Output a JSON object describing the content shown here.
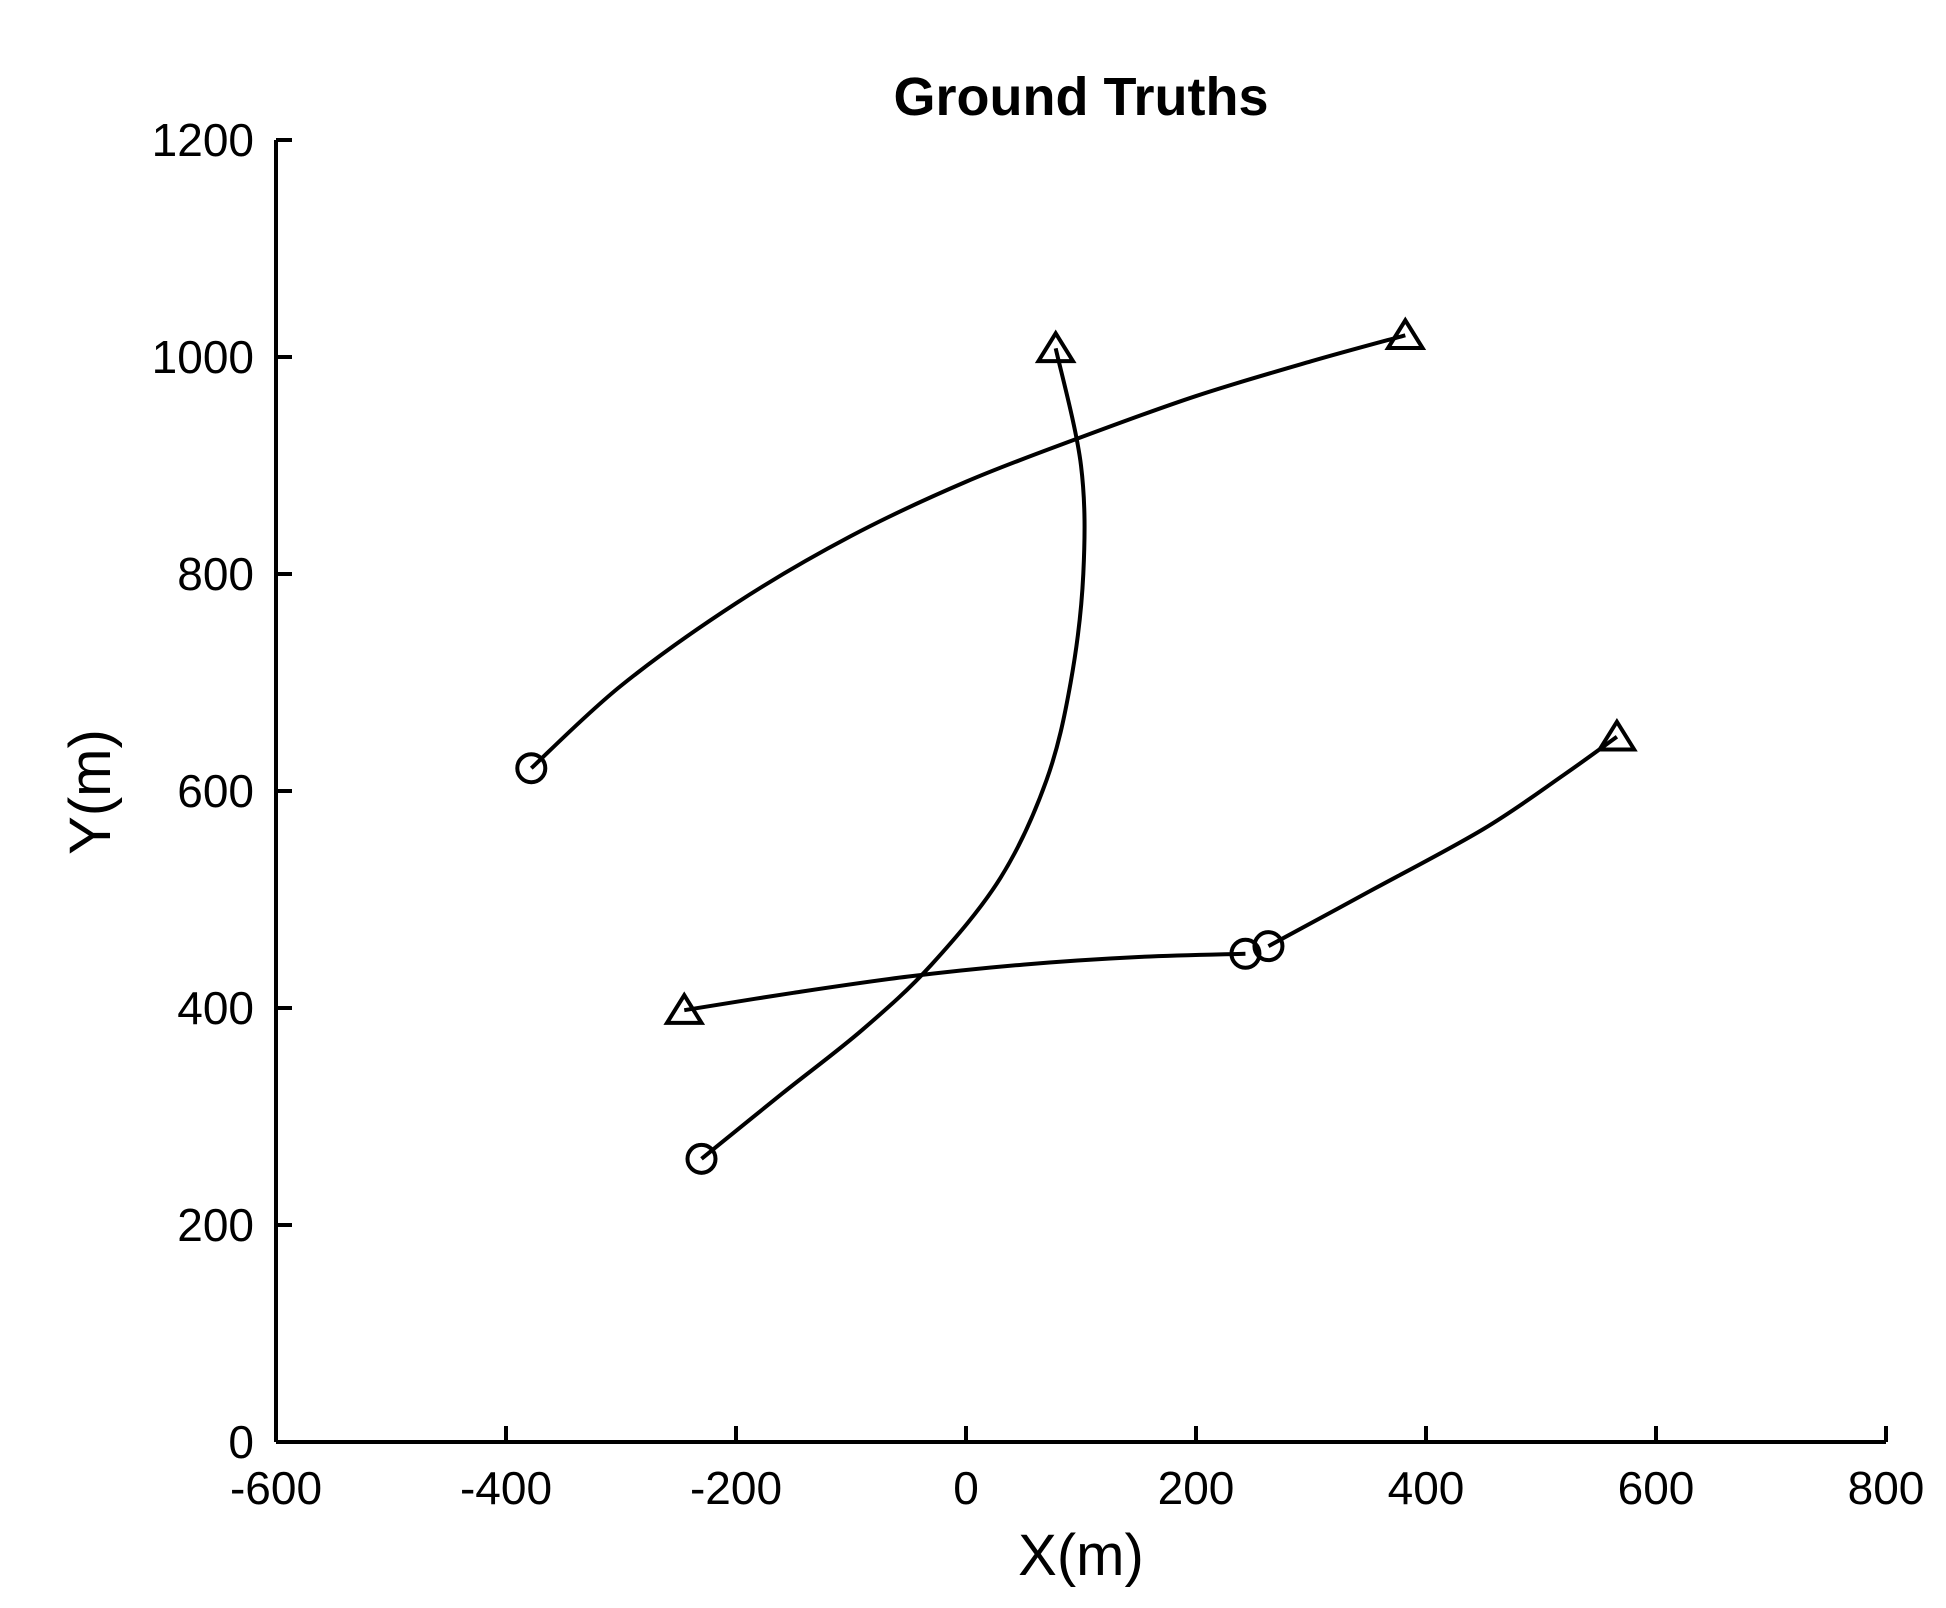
{
  "chart_data": {
    "type": "line",
    "title": "Ground Truths",
    "xlabel": "X(m)",
    "ylabel": "Y(m)",
    "xlim": [
      -600,
      800
    ],
    "ylim": [
      0,
      1200
    ],
    "xticks": [
      -600,
      -400,
      -200,
      0,
      200,
      400,
      600,
      800
    ],
    "yticks": [
      0,
      200,
      400,
      600,
      800,
      1000,
      1200
    ],
    "xtick_labels": [
      "-600",
      "-400",
      "-200",
      "0",
      "200",
      "400",
      "600",
      "800"
    ],
    "ytick_labels": [
      "0",
      "200",
      "400",
      "600",
      "800",
      "1000",
      "1200"
    ],
    "grid": false,
    "legend": "none",
    "markers": {
      "start": "circle",
      "end": "triangle"
    },
    "series": [
      {
        "x": [
          -378,
          -300,
          -200,
          -100,
          0,
          100,
          200,
          300,
          382
        ],
        "y": [
          621,
          697,
          773,
          835,
          885,
          926,
          964,
          996,
          1020
        ]
      },
      {
        "x": [
          -230,
          -160,
          -90,
          -30,
          30,
          70,
          91,
          102,
          100,
          78
        ],
        "y": [
          261,
          321,
          380,
          440,
          520,
          610,
          700,
          800,
          900,
          1008
        ]
      },
      {
        "x": [
          243,
          150,
          50,
          -50,
          -150,
          -245
        ],
        "y": [
          450,
          447,
          440,
          429,
          414,
          398
        ]
      },
      {
        "x": [
          263,
          350,
          450,
          520,
          566
        ],
        "y": [
          457,
          507,
          565,
          615,
          650
        ]
      }
    ]
  }
}
